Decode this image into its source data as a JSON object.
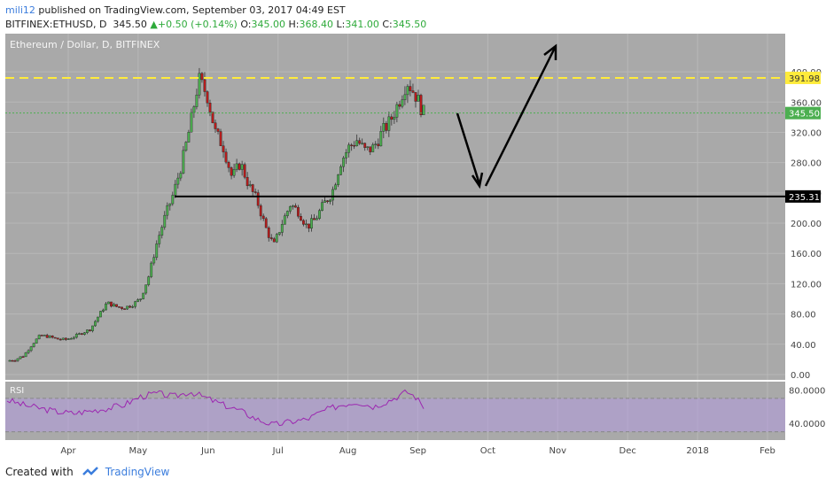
{
  "header": {
    "user": "mili12",
    "published": " published on TradingView.com, September 03, 2017 04:49 EST"
  },
  "symbol_line": {
    "symbol": "BITFINEX:ETHUSD, D",
    "price": "345.50",
    "change": "+0.50 (+0.14%)",
    "o_label": "O:",
    "o_val": "345.00",
    "h_label": "H:",
    "h_val": "368.40",
    "l_label": "L:",
    "l_val": "341.00",
    "c_label": "C:",
    "c_val": "345.50"
  },
  "footer": {
    "created_with": "Created with",
    "brand": "TradingView"
  },
  "colors": {
    "panel": "#a9a9a9",
    "up": "#4caf50",
    "down": "#b71c1c",
    "resistance": "#ffeb3b",
    "rsi_line": "#9c27b0",
    "rsi_band": "#b39ddb"
  },
  "chart_data": {
    "type": "candlestick",
    "title": "Ethereum / Dollar, D, BITFINEX",
    "y_ticks": [
      "400.00",
      "360.00",
      "320.00",
      "280.00",
      "240.00",
      "200.00",
      "160.00",
      "120.00",
      "80.00",
      "40.00",
      "0.00"
    ],
    "y_tick_values": [
      400,
      360,
      320,
      280,
      240,
      200,
      160,
      120,
      80,
      40,
      0
    ],
    "ylim": [
      0,
      420
    ],
    "x_labels": [
      "Apr",
      "May",
      "Jun",
      "Jul",
      "Aug",
      "Sep",
      "Oct",
      "Nov",
      "Dec",
      "2018",
      "Feb"
    ],
    "resistance_label": "391.98",
    "resistance_value": 391.98,
    "support_label": "235.31",
    "support_value": 235.31,
    "last_price_label": "345.50",
    "last_price_value": 345.5,
    "price_path": [
      [
        0,
        18
      ],
      [
        0.5,
        20
      ],
      [
        1,
        25
      ],
      [
        1.5,
        40
      ],
      [
        2,
        52
      ],
      [
        2.5,
        50
      ],
      [
        3,
        47
      ],
      [
        3.5,
        46
      ],
      [
        4,
        50
      ],
      [
        4.5,
        55
      ],
      [
        5,
        60
      ],
      [
        5.5,
        78
      ],
      [
        6,
        95
      ],
      [
        6.5,
        90
      ],
      [
        7,
        88
      ],
      [
        7.5,
        92
      ],
      [
        8,
        100
      ],
      [
        8.5,
        130
      ],
      [
        9,
        175
      ],
      [
        9.5,
        210
      ],
      [
        10,
        240
      ],
      [
        10.5,
        280
      ],
      [
        11,
        330
      ],
      [
        11.5,
        390
      ],
      [
        12,
        370
      ],
      [
        12.5,
        320
      ],
      [
        13,
        300
      ],
      [
        13.5,
        260
      ],
      [
        14,
        280
      ],
      [
        14.5,
        250
      ],
      [
        15,
        230
      ],
      [
        15.5,
        195
      ],
      [
        16,
        170
      ],
      [
        16.5,
        200
      ],
      [
        17,
        225
      ],
      [
        17.5,
        215
      ],
      [
        18,
        195
      ],
      [
        18.5,
        205
      ],
      [
        19,
        225
      ],
      [
        19.5,
        240
      ],
      [
        20,
        280
      ],
      [
        20.5,
        300
      ],
      [
        21,
        310
      ],
      [
        21.5,
        295
      ],
      [
        22,
        300
      ],
      [
        22.5,
        320
      ],
      [
        23,
        335
      ],
      [
        23.5,
        360
      ],
      [
        24,
        388
      ],
      [
        24.5,
        370
      ],
      [
        25,
        345.5
      ]
    ],
    "rsi": {
      "label": "RSI",
      "ticks": [
        "80.0000",
        "40.0000"
      ],
      "tick_values": [
        80,
        40
      ],
      "ylim": [
        20,
        90
      ],
      "band": [
        30,
        70
      ],
      "values": [
        [
          0,
          68
        ],
        [
          1,
          62
        ],
        [
          2,
          58
        ],
        [
          3,
          54
        ],
        [
          4,
          52
        ],
        [
          5,
          55
        ],
        [
          6,
          58
        ],
        [
          7,
          62
        ],
        [
          8,
          72
        ],
        [
          9,
          76
        ],
        [
          10,
          72
        ],
        [
          11,
          78
        ],
        [
          12,
          70
        ],
        [
          13,
          62
        ],
        [
          14,
          55
        ],
        [
          15,
          45
        ],
        [
          16,
          38
        ],
        [
          17,
          42
        ],
        [
          18,
          45
        ],
        [
          19,
          55
        ],
        [
          20,
          62
        ],
        [
          21,
          66
        ],
        [
          22,
          60
        ],
        [
          23,
          68
        ],
        [
          24,
          78
        ],
        [
          24.5,
          72
        ],
        [
          25,
          60
        ]
      ]
    }
  }
}
